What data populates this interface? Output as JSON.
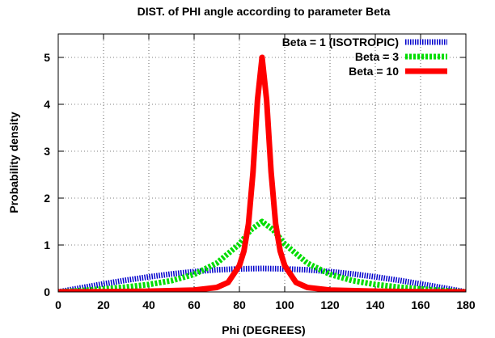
{
  "chart_data": {
    "type": "line",
    "title": "DIST. of PHI angle according to parameter Beta",
    "xlabel": "Phi (DEGREES)",
    "ylabel": "Probability density",
    "xlim": [
      0,
      180
    ],
    "ylim": [
      0,
      5.5
    ],
    "xticks": [
      0,
      20,
      40,
      60,
      80,
      100,
      120,
      140,
      160,
      180
    ],
    "yticks": [
      0,
      1,
      2,
      3,
      4,
      5
    ],
    "grid": true,
    "legend_position": "top-right",
    "series": [
      {
        "name": "Beta = 1 (ISOTROPIC)",
        "beta": 1,
        "color": "#0000cc",
        "style": "hatched",
        "x": [
          0,
          10,
          20,
          30,
          40,
          50,
          60,
          70,
          80,
          90,
          100,
          110,
          120,
          130,
          140,
          150,
          160,
          170,
          180
        ],
        "y": [
          0,
          0.087,
          0.171,
          0.25,
          0.321,
          0.383,
          0.433,
          0.47,
          0.492,
          0.5,
          0.492,
          0.47,
          0.433,
          0.383,
          0.321,
          0.25,
          0.171,
          0.087,
          0
        ]
      },
      {
        "name": "Beta = 3",
        "beta": 3,
        "color": "#00dd00",
        "style": "dotted",
        "x": [
          0,
          10,
          20,
          30,
          40,
          50,
          60,
          70,
          80,
          85,
          90,
          95,
          100,
          110,
          120,
          130,
          140,
          150,
          160,
          170,
          180
        ],
        "y": [
          0,
          0.03,
          0.063,
          0.104,
          0.158,
          0.24,
          0.375,
          0.613,
          1.02,
          1.32,
          1.5,
          1.32,
          1.02,
          0.613,
          0.375,
          0.24,
          0.158,
          0.104,
          0.063,
          0.03,
          0
        ]
      },
      {
        "name": "Beta = 10",
        "beta": 10,
        "color": "#ff0000",
        "style": "solid",
        "x": [
          0,
          20,
          40,
          60,
          70,
          75,
          80,
          82,
          84,
          86,
          88,
          90,
          92,
          94,
          96,
          98,
          100,
          105,
          110,
          120,
          140,
          160,
          180
        ],
        "y": [
          0,
          0.006,
          0.016,
          0.04,
          0.094,
          0.201,
          0.562,
          0.873,
          1.45,
          2.55,
          4.1,
          5.0,
          4.1,
          2.55,
          1.45,
          0.873,
          0.562,
          0.201,
          0.094,
          0.04,
          0.016,
          0.006,
          0
        ]
      }
    ]
  }
}
